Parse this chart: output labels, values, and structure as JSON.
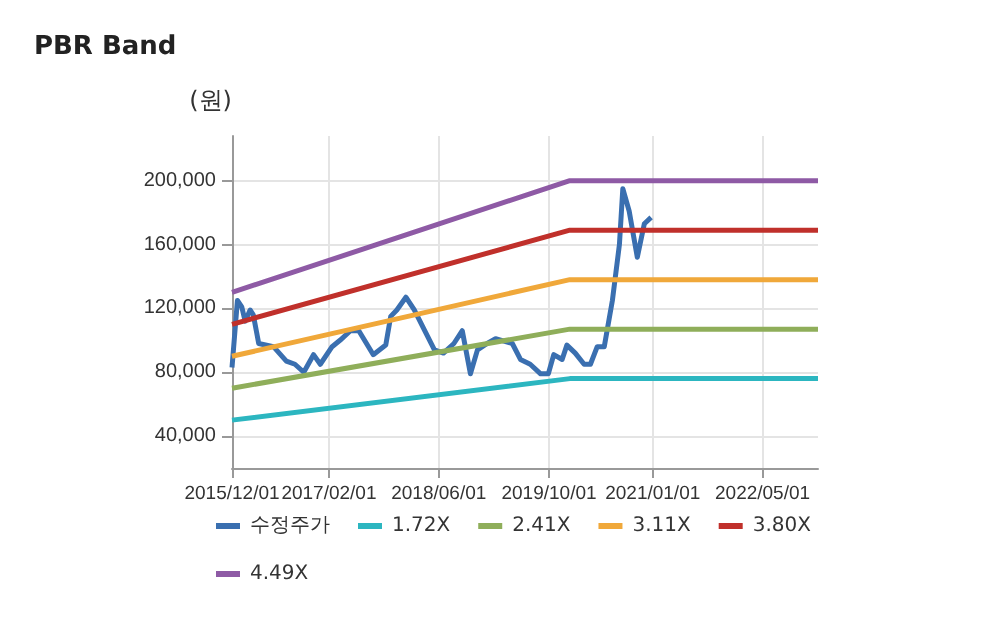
{
  "chart_data": {
    "type": "line",
    "title": "PBR Band",
    "ylabel": "(원)",
    "marker": "none",
    "line_style": "solid",
    "grid": true,
    "legend": "bottom",
    "xlim": [
      "2015-12-01",
      "2023-01-01"
    ],
    "xticks": [
      {
        "value": "2015-12-01",
        "label": "2015/12/01"
      },
      {
        "value": "2017-02-01",
        "label": "2017/02/01"
      },
      {
        "value": "2018-06-01",
        "label": "2018/06/01"
      },
      {
        "value": "2019-10-01",
        "label": "2019/10/01"
      },
      {
        "value": "2021-01-01",
        "label": "2021/01/01"
      },
      {
        "value": "2022-05-01",
        "label": "2022/05/01"
      }
    ],
    "ylim": [
      20000,
      228000
    ],
    "yticks": [
      {
        "value": 40000,
        "label": "40,000"
      },
      {
        "value": 80000,
        "label": "80,000"
      },
      {
        "value": 120000,
        "label": "120,000"
      },
      {
        "value": 160000,
        "label": "160,000"
      },
      {
        "value": 200000,
        "label": "200,000"
      }
    ],
    "series": [
      {
        "name": "수정주가",
        "color": "#3a6fb0",
        "x": [
          "2015-12-01",
          "2015-12-25",
          "2016-01-13",
          "2016-01-28",
          "2016-02-19",
          "2016-03-04",
          "2016-03-28",
          "2016-06-01",
          "2016-07-28",
          "2016-09-04",
          "2016-10-13",
          "2016-11-25",
          "2016-12-25",
          "2017-02-15",
          "2017-03-22",
          "2017-05-07",
          "2017-06-13",
          "2017-08-16",
          "2017-10-10",
          "2017-11-01",
          "2017-11-28",
          "2018-01-07",
          "2018-02-13",
          "2018-04-04",
          "2018-05-13",
          "2018-06-22",
          "2018-08-07",
          "2018-09-13",
          "2018-10-19",
          "2018-11-19",
          "2019-01-01",
          "2019-02-07",
          "2019-04-22",
          "2019-05-28",
          "2019-07-10",
          "2019-08-25",
          "2019-09-28",
          "2019-10-22",
          "2019-11-28",
          "2019-12-19",
          "2020-01-25",
          "2020-03-04",
          "2020-04-01",
          "2020-05-01",
          "2020-06-01",
          "2020-07-07",
          "2020-08-07",
          "2020-08-22",
          "2020-09-19",
          "2020-10-25",
          "2020-11-25",
          "2020-12-25"
        ],
        "values": [
          83000,
          125000,
          121000,
          112000,
          119000,
          116000,
          98000,
          96000,
          87000,
          85000,
          80000,
          91000,
          85000,
          96000,
          100000,
          106000,
          106000,
          91000,
          97000,
          115000,
          119000,
          127000,
          119000,
          105000,
          94000,
          92000,
          98000,
          106000,
          79000,
          94000,
          98000,
          101000,
          98000,
          88000,
          85000,
          79000,
          79000,
          91000,
          88000,
          97000,
          92000,
          85000,
          85000,
          96000,
          96000,
          125000,
          160000,
          195000,
          181000,
          152000,
          173000,
          177000
        ]
      },
      {
        "name": "1.72X",
        "color": "#2cb6c0",
        "x": [
          "2015-12-01",
          "2020-01-01",
          "2023-01-01"
        ],
        "values": [
          50000,
          76000,
          76000
        ]
      },
      {
        "name": "2.41X",
        "color": "#8fae5a",
        "x": [
          "2015-12-01",
          "2020-01-01",
          "2023-01-01"
        ],
        "values": [
          70000,
          107000,
          107000
        ]
      },
      {
        "name": "3.11X",
        "color": "#f0a83a",
        "x": [
          "2015-12-01",
          "2020-01-01",
          "2023-01-01"
        ],
        "values": [
          90000,
          138000,
          138000
        ]
      },
      {
        "name": "3.80X",
        "color": "#c0302b",
        "x": [
          "2015-12-01",
          "2020-01-01",
          "2023-01-01"
        ],
        "values": [
          110000,
          169000,
          169000
        ]
      },
      {
        "name": "4.49X",
        "color": "#8e5aa5",
        "x": [
          "2015-12-01",
          "2020-01-01",
          "2023-01-01"
        ],
        "values": [
          130000,
          200000,
          200000
        ]
      }
    ]
  }
}
